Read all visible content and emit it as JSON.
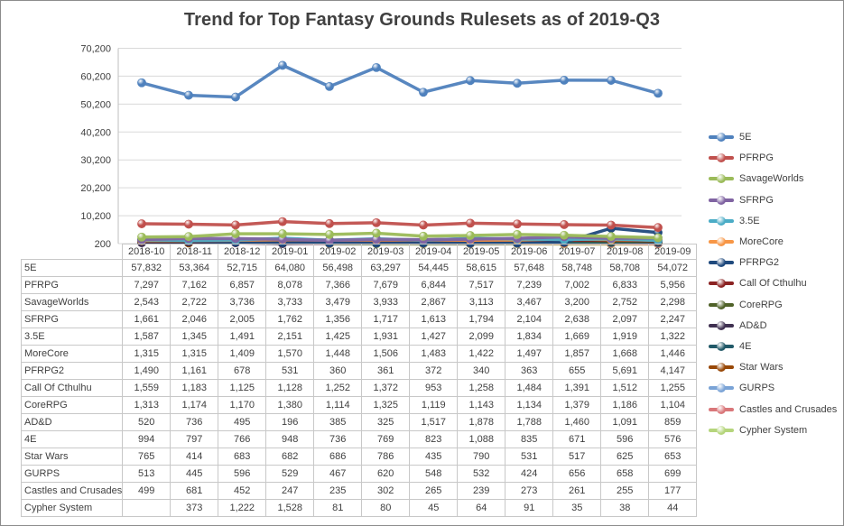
{
  "chart_data": {
    "type": "line",
    "title": "Trend for Top Fantasy Grounds Rulesets as of 2019-Q3",
    "categories": [
      "2018-10",
      "2018-11",
      "2018-12",
      "2019-01",
      "2019-02",
      "2019-03",
      "2019-04",
      "2019-05",
      "2019-06",
      "2019-07",
      "2019-08",
      "2019-09"
    ],
    "yticks": [
      "70,200",
      "60,200",
      "50,200",
      "40,200",
      "30,200",
      "20,200",
      "10,200",
      "200"
    ],
    "ylim": [
      200,
      70200
    ],
    "grid": true,
    "legend_position": "right",
    "series": [
      {
        "name": "5E",
        "color": "#4f81bd",
        "values": [
          57832,
          53364,
          52715,
          64080,
          56498,
          63297,
          54445,
          58615,
          57648,
          58748,
          58708,
          54072
        ],
        "labels": [
          "57,832",
          "53,364",
          "52,715",
          "64,080",
          "56,498",
          "63,297",
          "54,445",
          "58,615",
          "57,648",
          "58,748",
          "58,708",
          "54,072"
        ]
      },
      {
        "name": "PFRPG",
        "color": "#c0504d",
        "values": [
          7297,
          7162,
          6857,
          8078,
          7366,
          7679,
          6844,
          7517,
          7239,
          7002,
          6833,
          5956
        ],
        "labels": [
          "7,297",
          "7,162",
          "6,857",
          "8,078",
          "7,366",
          "7,679",
          "6,844",
          "7,517",
          "7,239",
          "7,002",
          "6,833",
          "5,956"
        ]
      },
      {
        "name": "SavageWorlds",
        "color": "#9bbb59",
        "values": [
          2543,
          2722,
          3736,
          3733,
          3479,
          3933,
          2867,
          3113,
          3467,
          3200,
          2752,
          2298
        ],
        "labels": [
          "2,543",
          "2,722",
          "3,736",
          "3,733",
          "3,479",
          "3,933",
          "2,867",
          "3,113",
          "3,467",
          "3,200",
          "2,752",
          "2,298"
        ]
      },
      {
        "name": "SFRPG",
        "color": "#8064a2",
        "values": [
          1661,
          2046,
          2005,
          1762,
          1356,
          1717,
          1613,
          1794,
          2104,
          2638,
          2097,
          2247
        ],
        "labels": [
          "1,661",
          "2,046",
          "2,005",
          "1,762",
          "1,356",
          "1,717",
          "1,613",
          "1,794",
          "2,104",
          "2,638",
          "2,097",
          "2,247"
        ]
      },
      {
        "name": "3.5E",
        "color": "#4bacc6",
        "values": [
          1587,
          1345,
          1491,
          2151,
          1425,
          1931,
          1427,
          2099,
          1834,
          1669,
          1919,
          1322
        ],
        "labels": [
          "1,587",
          "1,345",
          "1,491",
          "2,151",
          "1,425",
          "1,931",
          "1,427",
          "2,099",
          "1,834",
          "1,669",
          "1,919",
          "1,322"
        ]
      },
      {
        "name": "MoreCore",
        "color": "#f79646",
        "values": [
          1315,
          1315,
          1409,
          1570,
          1448,
          1506,
          1483,
          1422,
          1497,
          1857,
          1668,
          1446
        ],
        "labels": [
          "1,315",
          "1,315",
          "1,409",
          "1,570",
          "1,448",
          "1,506",
          "1,483",
          "1,422",
          "1,497",
          "1,857",
          "1,668",
          "1,446"
        ]
      },
      {
        "name": "PFRPG2",
        "color": "#1f497d",
        "values": [
          1490,
          1161,
          678,
          531,
          360,
          361,
          372,
          340,
          363,
          655,
          5691,
          4147
        ],
        "labels": [
          "1,490",
          "1,161",
          "678",
          "531",
          "360",
          "361",
          "372",
          "340",
          "363",
          "655",
          "5,691",
          "4,147"
        ]
      },
      {
        "name": "Call Of Cthulhu",
        "color": "#8b2323",
        "values": [
          1559,
          1183,
          1125,
          1128,
          1252,
          1372,
          953,
          1258,
          1484,
          1391,
          1512,
          1255
        ],
        "labels": [
          "1,559",
          "1,183",
          "1,125",
          "1,128",
          "1,252",
          "1,372",
          "953",
          "1,258",
          "1,484",
          "1,391",
          "1,512",
          "1,255"
        ]
      },
      {
        "name": "CoreRPG",
        "color": "#4f6228",
        "values": [
          1313,
          1174,
          1170,
          1380,
          1114,
          1325,
          1119,
          1143,
          1134,
          1379,
          1186,
          1104
        ],
        "labels": [
          "1,313",
          "1,174",
          "1,170",
          "1,380",
          "1,114",
          "1,325",
          "1,119",
          "1,143",
          "1,134",
          "1,379",
          "1,186",
          "1,104"
        ]
      },
      {
        "name": "AD&D",
        "color": "#403151",
        "values": [
          520,
          736,
          495,
          196,
          385,
          325,
          1517,
          1878,
          1788,
          1460,
          1091,
          859
        ],
        "labels": [
          "520",
          "736",
          "495",
          "196",
          "385",
          "325",
          "1,517",
          "1,878",
          "1,788",
          "1,460",
          "1,091",
          "859"
        ]
      },
      {
        "name": "4E",
        "color": "#215968",
        "values": [
          994,
          797,
          766,
          948,
          736,
          769,
          823,
          1088,
          835,
          671,
          596,
          576
        ],
        "labels": [
          "994",
          "797",
          "766",
          "948",
          "736",
          "769",
          "823",
          "1,088",
          "835",
          "671",
          "596",
          "576"
        ]
      },
      {
        "name": "Star Wars",
        "color": "#984807",
        "values": [
          765,
          414,
          683,
          682,
          686,
          786,
          435,
          790,
          531,
          517,
          625,
          653
        ],
        "labels": [
          "765",
          "414",
          "683",
          "682",
          "686",
          "786",
          "435",
          "790",
          "531",
          "517",
          "625",
          "653"
        ]
      },
      {
        "name": "GURPS",
        "color": "#7aa3d6",
        "values": [
          513,
          445,
          596,
          529,
          467,
          620,
          548,
          532,
          424,
          656,
          658,
          699
        ],
        "labels": [
          "513",
          "445",
          "596",
          "529",
          "467",
          "620",
          "548",
          "532",
          "424",
          "656",
          "658",
          "699"
        ]
      },
      {
        "name": "Castles and Crusades",
        "color": "#d9777a",
        "values": [
          499,
          681,
          452,
          247,
          235,
          302,
          265,
          239,
          273,
          261,
          255,
          177
        ],
        "labels": [
          "499",
          "681",
          "452",
          "247",
          "235",
          "302",
          "265",
          "239",
          "273",
          "261",
          "255",
          "177"
        ]
      },
      {
        "name": "Cypher System",
        "color": "#b5d57c",
        "values": [
          null,
          373,
          1222,
          1528,
          81,
          80,
          45,
          64,
          91,
          35,
          38,
          44
        ],
        "labels": [
          "",
          "373",
          "1,222",
          "1,528",
          "81",
          "80",
          "45",
          "64",
          "91",
          "35",
          "38",
          "44"
        ]
      }
    ]
  }
}
